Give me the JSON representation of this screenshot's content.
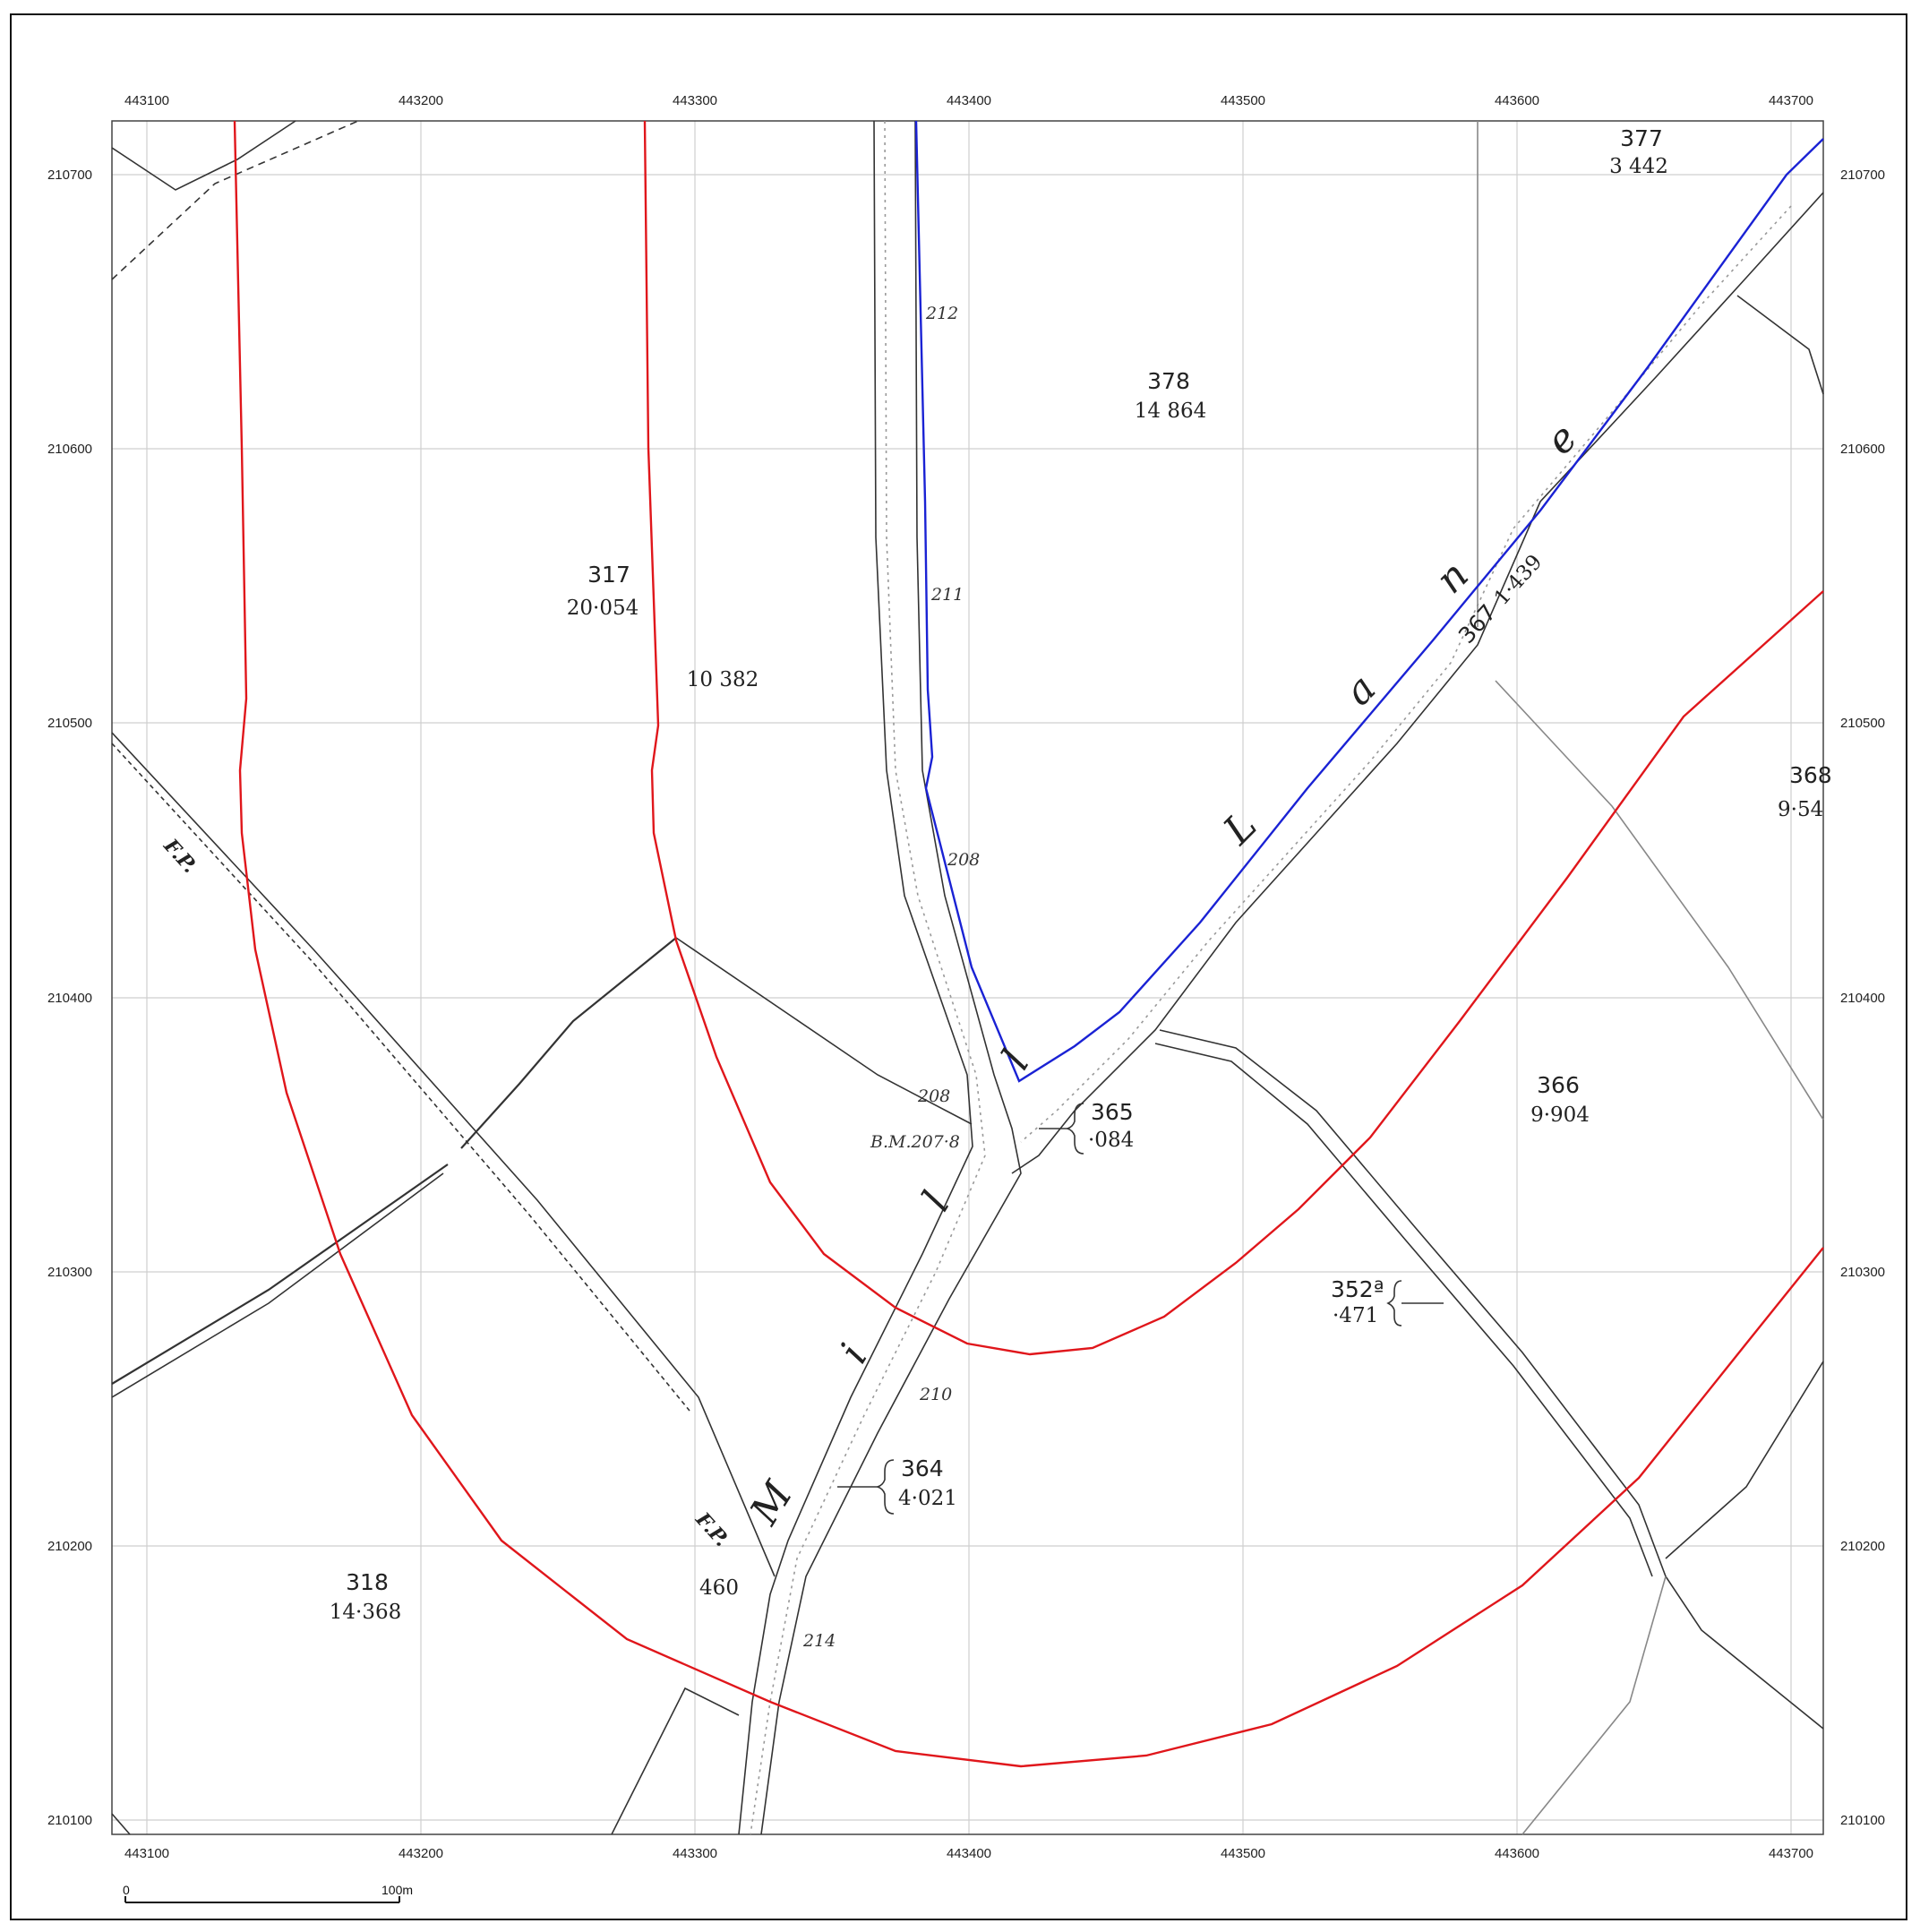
{
  "map": {
    "easting_ticks": [
      "443100",
      "443200",
      "443300",
      "443400",
      "443500",
      "443600",
      "443700"
    ],
    "northing_ticks": [
      "210700",
      "210600",
      "210500",
      "210400",
      "210300",
      "210200",
      "210100"
    ],
    "parcels": [
      {
        "num": "377",
        "area": "3 442"
      },
      {
        "num": "378",
        "area": "14 864"
      },
      {
        "num": "317",
        "area": "20·054"
      },
      {
        "area": "10 382"
      },
      {
        "num": "368",
        "area": "9·54"
      },
      {
        "num": "366",
        "area": "9·904"
      },
      {
        "num": "365",
        "area": "·084"
      },
      {
        "num": "352ª",
        "area": "·471"
      },
      {
        "num": "364",
        "area": "4·021"
      },
      {
        "num": "318",
        "area": "14·368"
      },
      {
        "area": "460"
      },
      {
        "num": "367",
        "area": "1·439"
      }
    ],
    "spot_heights": [
      "212",
      "211",
      "208",
      "208",
      "210",
      "214"
    ],
    "benchmark": "B.M.207·8",
    "footpath_labels": [
      "F.P.",
      "F.P."
    ],
    "lane_name": [
      "L",
      "a",
      "n",
      "e"
    ],
    "road_name": [
      "M",
      "i",
      "l",
      "l"
    ],
    "scale": {
      "start": "0",
      "end": "100m"
    },
    "colors": {
      "proposal_boundary": "#e0161b",
      "site_boundary": "#1a22d4",
      "grid": "#cfcfcf",
      "linework": "#333333"
    }
  }
}
